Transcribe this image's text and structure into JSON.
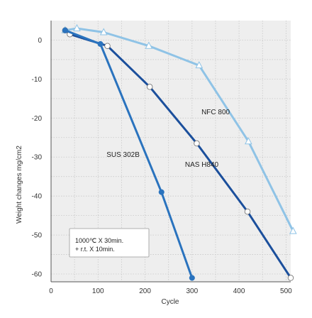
{
  "chart_data": {
    "type": "line",
    "xlabel": "Cycle",
    "ylabel": "Weight changes  mg/cm2",
    "xlim": [
      0,
      510
    ],
    "ylim": [
      -62,
      5
    ],
    "xticks": [
      0,
      100,
      200,
      300,
      400,
      500
    ],
    "yticks": [
      0,
      -10,
      -20,
      -30,
      -40,
      -50,
      -60
    ],
    "grid": true,
    "note_lines": [
      "1000℃ X 30min.",
      "+ r.t. X 10min."
    ],
    "series": [
      {
        "name": "NFC 800",
        "color": "#8fc3e6",
        "marker": "triangle",
        "x": [
          30,
          55,
          112,
          208,
          315,
          420,
          515
        ],
        "y": [
          2.5,
          3.0,
          2.0,
          -1.5,
          -6.5,
          -26.0,
          -49.0
        ],
        "label_at": [
          320,
          -19.0
        ]
      },
      {
        "name": "NAS H840",
        "color": "#1b4f9c",
        "marker": "circle-open",
        "x": [
          30,
          40,
          120,
          210,
          310,
          418,
          510
        ],
        "y": [
          2.5,
          1.5,
          -1.5,
          -12.0,
          -26.5,
          -44.0,
          -61.0
        ],
        "label_at": [
          285,
          -32.5
        ]
      },
      {
        "name": "SUS 302B",
        "color": "#2a73be",
        "marker": "circle-filled",
        "x": [
          30,
          105,
          235,
          300
        ],
        "y": [
          2.5,
          -1.0,
          -39.0,
          -61.0
        ],
        "label_at": [
          118,
          -30.0
        ]
      }
    ]
  }
}
